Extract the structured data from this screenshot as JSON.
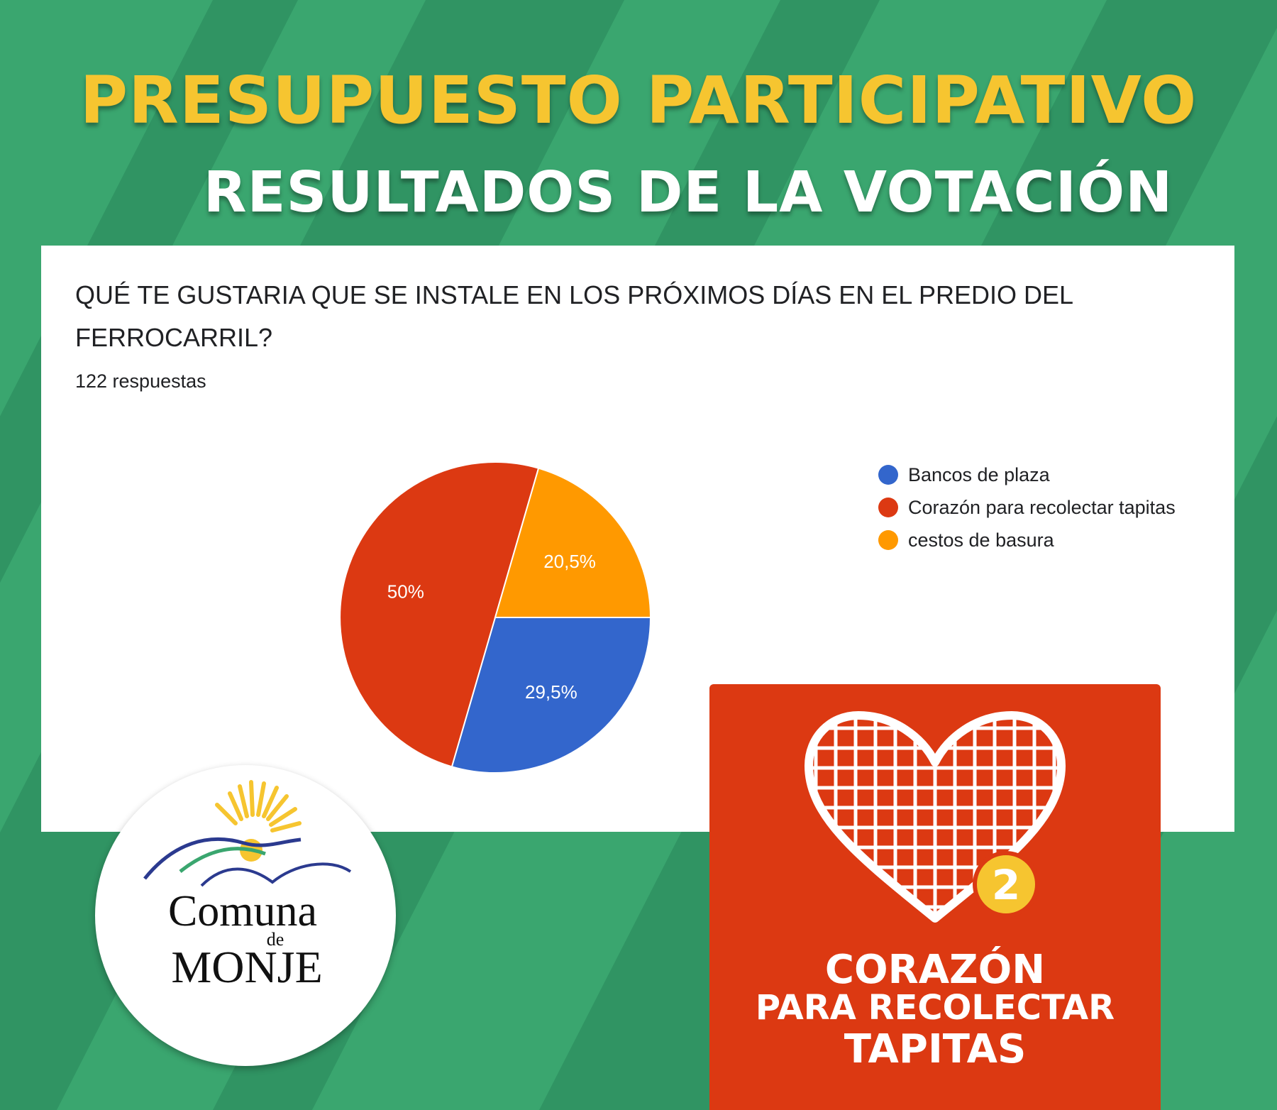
{
  "header": {
    "title": "PRESUPUESTO PARTICIPATIVO",
    "subtitle": "RESULTADOS DE LA VOTACIÓN"
  },
  "form": {
    "question": "QUÉ TE GUSTARIA QUE SE INSTALE EN LOS PRÓXIMOS DÍAS EN EL PREDIO DEL FERROCARRIL?",
    "responses": "122 respuestas"
  },
  "chart_data": {
    "type": "pie",
    "title": "QUÉ TE GUSTARIA QUE SE INSTALE EN LOS PRÓXIMOS DÍAS EN EL PREDIO DEL FERROCARRIL?",
    "categories": [
      "Bancos de plaza",
      "Corazón para recolectar tapitas",
      "cestos de basura"
    ],
    "values": [
      29.5,
      50,
      20.5
    ],
    "value_labels": [
      "29,5%",
      "50%",
      "20,5%"
    ],
    "colors": [
      "#3366cc",
      "#dc3912",
      "#ff9900"
    ],
    "legend_position": "right"
  },
  "result_card": {
    "badge_number": "2",
    "line1": "CORAZÓN",
    "line2": "PARA RECOLECTAR",
    "line3": "TAPITAS",
    "color": "#dc3912"
  },
  "logo": {
    "text_line1": "Comuna",
    "text_line2": "de",
    "text_line3": "MONJE"
  },
  "colors": {
    "background": "#3aa66f",
    "title": "#f6c530",
    "subtitle": "#ffffff"
  }
}
